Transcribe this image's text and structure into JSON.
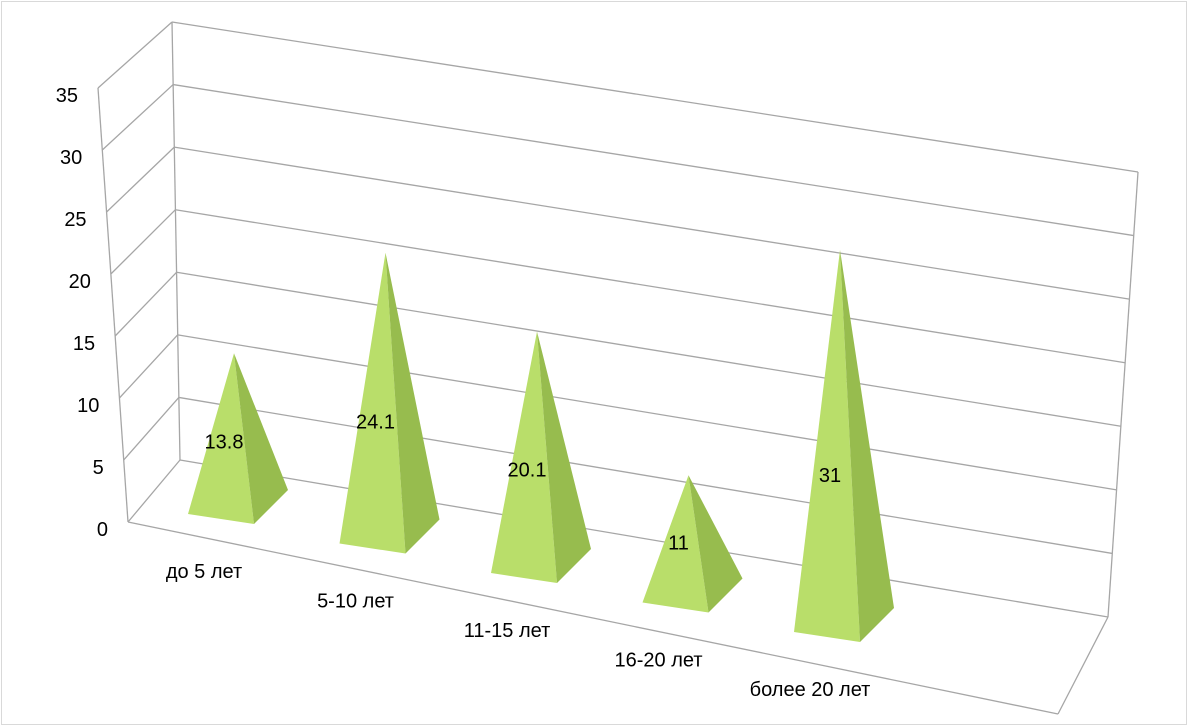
{
  "chart_data": {
    "type": "bar",
    "style": "3d-pyramid",
    "categories": [
      "до 5 лет",
      "5-10 лет",
      "11-15 лет",
      "16-20 лет",
      "более 20 лет"
    ],
    "values": [
      13.8,
      24.1,
      20.1,
      11,
      31
    ],
    "data_labels": [
      "13.8",
      "24.1",
      "20.1",
      "11",
      "31"
    ],
    "yticks": [
      0,
      5,
      10,
      15,
      20,
      25,
      30,
      35
    ],
    "ylim": [
      0,
      35
    ],
    "grid": true,
    "legend": "none",
    "title": "",
    "xlabel": "",
    "ylabel": "",
    "colors": {
      "pyramid_front": "#b9de6a",
      "pyramid_side": "#97bc4e",
      "gridline": "#a6a6a6",
      "frame": "#d9d9d9"
    }
  }
}
